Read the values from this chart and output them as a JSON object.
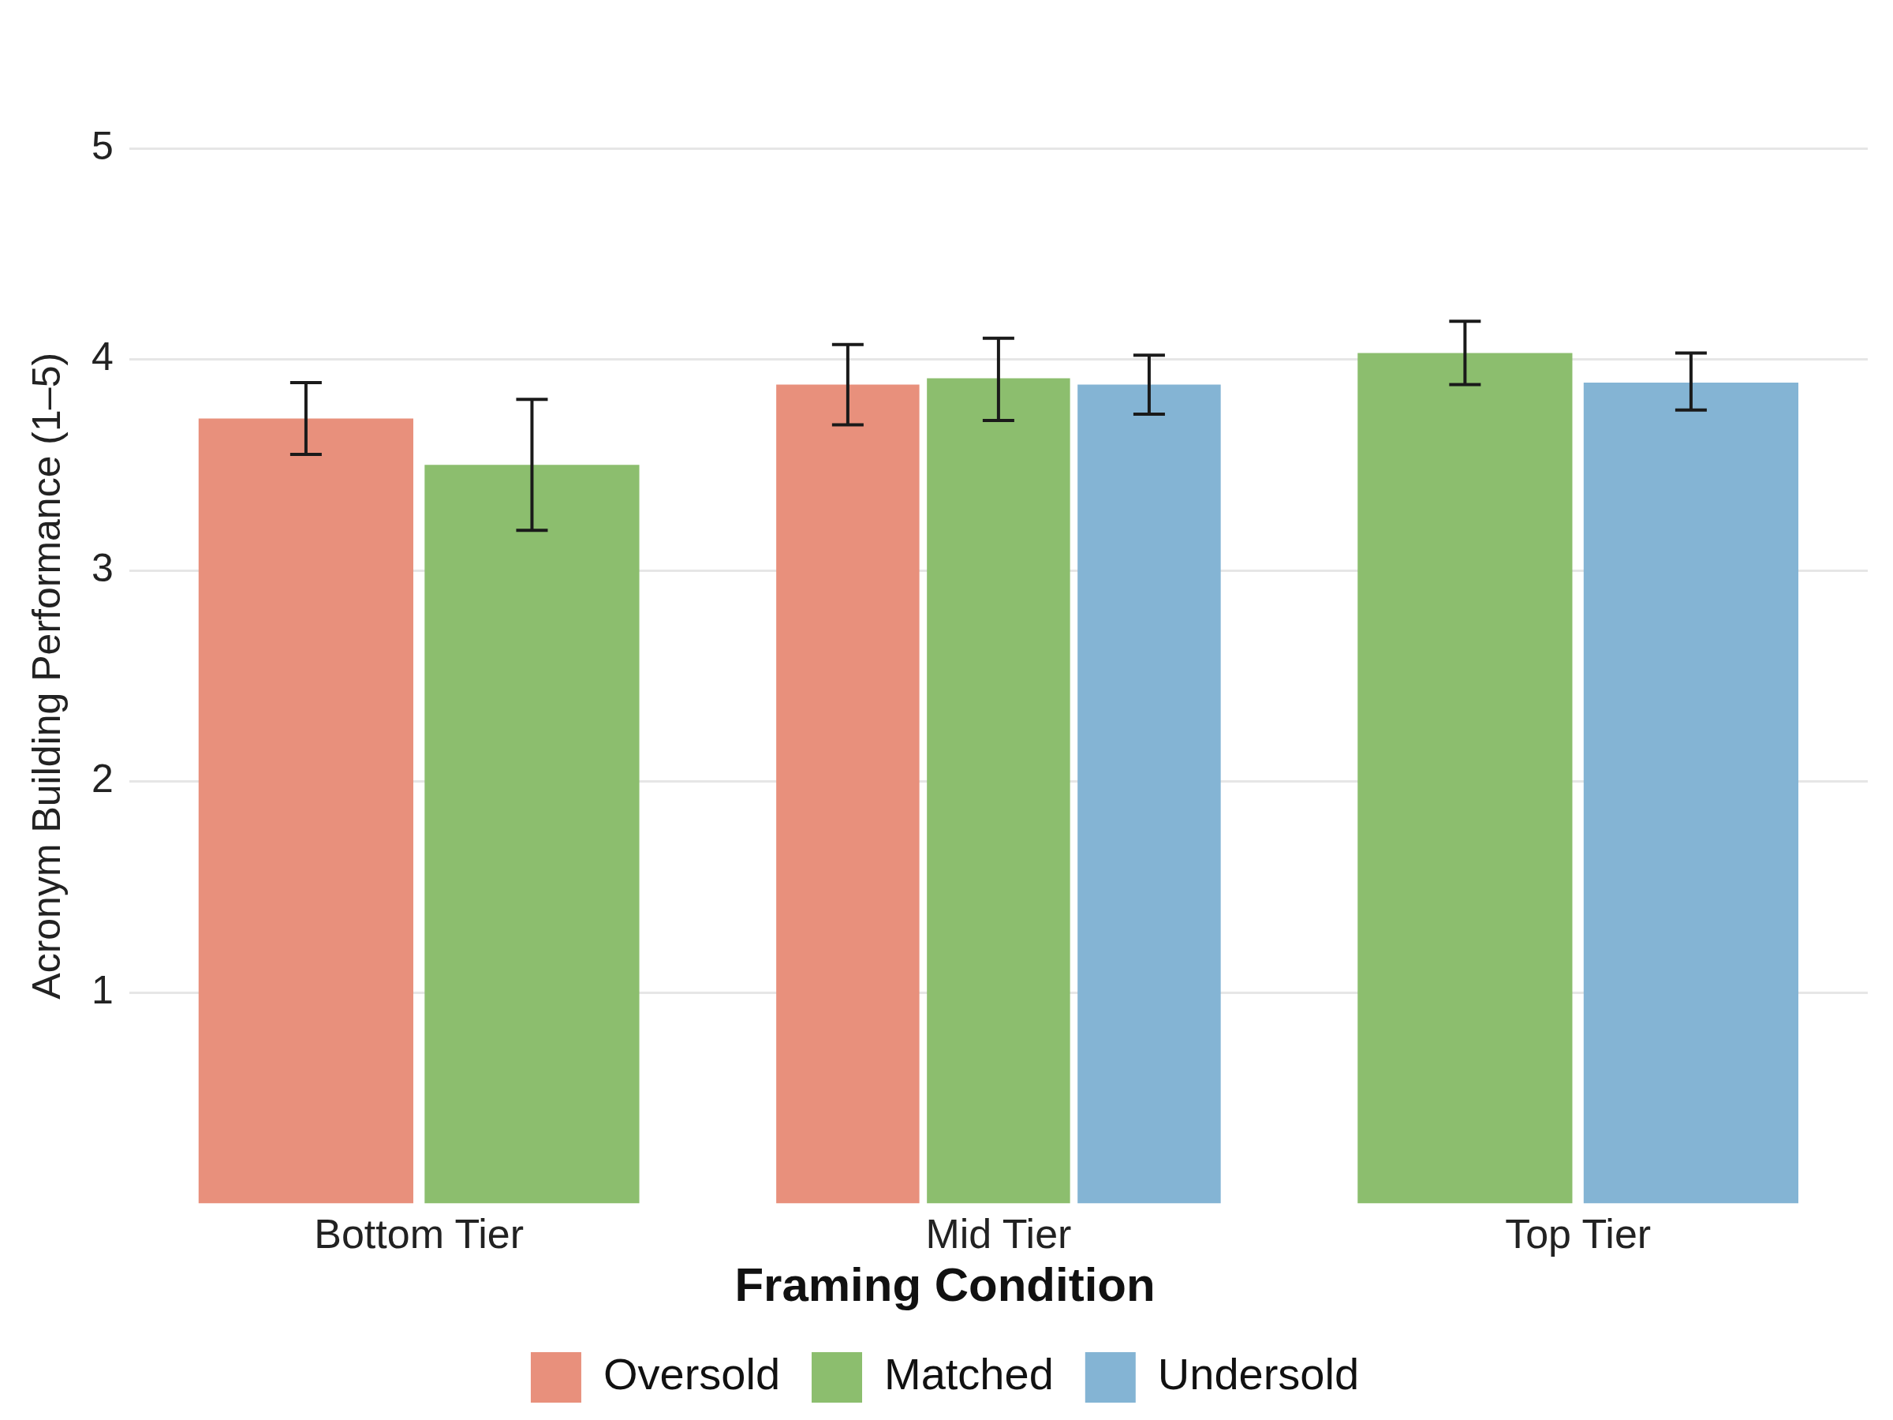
{
  "chart_data": {
    "type": "bar",
    "ylabel": "Acronym Building Performance (1–5)",
    "legend_title": "Framing Condition",
    "categories": [
      "Bottom Tier",
      "Mid Tier",
      "Top Tier"
    ],
    "series": [
      {
        "name": "Oversold",
        "color": "#e8907c",
        "values": [
          3.72,
          3.88,
          null
        ],
        "errors": [
          [
            3.55,
            3.89
          ],
          [
            3.69,
            4.07
          ],
          null
        ]
      },
      {
        "name": "Matched",
        "color": "#8cbe6e",
        "values": [
          3.5,
          3.91,
          4.03
        ],
        "errors": [
          [
            3.19,
            3.81
          ],
          [
            3.71,
            4.1
          ],
          [
            3.88,
            4.18
          ]
        ]
      },
      {
        "name": "Undersold",
        "color": "#84b4d4",
        "values": [
          null,
          3.88,
          3.89
        ],
        "errors": [
          null,
          [
            3.74,
            4.02
          ],
          [
            3.76,
            4.03
          ]
        ]
      }
    ],
    "ylim": [
      0,
      5
    ],
    "yticks": [
      1,
      2,
      3,
      4,
      5
    ],
    "grid": "y",
    "legend": "bottom"
  }
}
